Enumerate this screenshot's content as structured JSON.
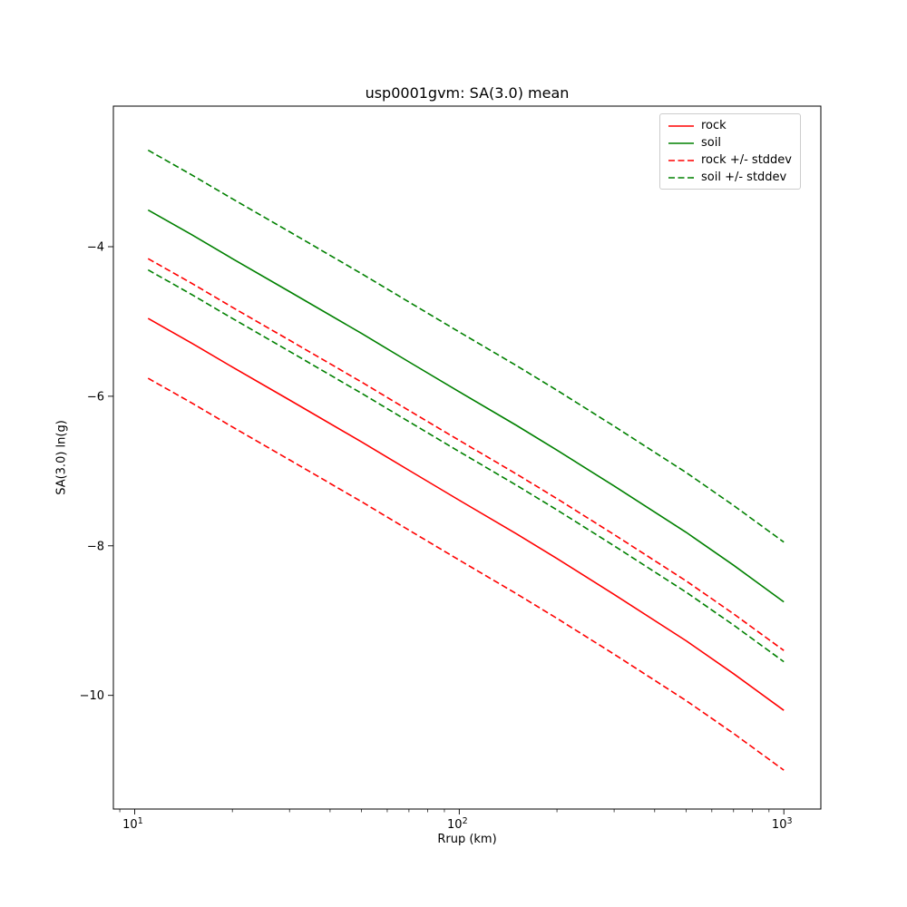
{
  "chart_data": {
    "type": "line",
    "title": "usp0001gvm: SA(3.0) mean",
    "xlabel": "Rrup (km)",
    "ylabel": "SA(3.0) ln(g)",
    "xscale": "log",
    "yscale": "linear",
    "xlim": [
      8.6,
      1300
    ],
    "ylim": [
      -11.52,
      -2.12
    ],
    "yticks": [
      -4,
      -6,
      -8,
      -10
    ],
    "xticks": [
      {
        "value": 10,
        "base": "10",
        "exponent": "1"
      },
      {
        "value": 100,
        "base": "10",
        "exponent": "2"
      },
      {
        "value": 1000,
        "base": "10",
        "exponent": "3"
      }
    ],
    "x_minor_ticks": [
      9,
      20,
      30,
      40,
      50,
      60,
      70,
      80,
      90,
      200,
      300,
      400,
      500,
      600,
      700,
      800,
      900
    ],
    "x": [
      11,
      15,
      20,
      30,
      50,
      70,
      100,
      150,
      200,
      300,
      500,
      700,
      1000
    ],
    "series": [
      {
        "name": "rock",
        "color": "#ff0000",
        "style": "solid",
        "values": [
          -4.96,
          -5.29,
          -5.61,
          -6.05,
          -6.61,
          -6.99,
          -7.39,
          -7.84,
          -8.17,
          -8.65,
          -9.27,
          -9.71,
          -10.2
        ]
      },
      {
        "name": "soil",
        "color": "#008000",
        "style": "solid",
        "values": [
          -3.51,
          -3.84,
          -4.16,
          -4.6,
          -5.16,
          -5.54,
          -5.94,
          -6.39,
          -6.72,
          -7.2,
          -7.82,
          -8.26,
          -8.75
        ]
      },
      {
        "name": "rock +/- stddev",
        "color": "#ff0000",
        "style": "dashed",
        "upper": [
          -4.16,
          -4.49,
          -4.81,
          -5.25,
          -5.81,
          -6.19,
          -6.59,
          -7.04,
          -7.37,
          -7.85,
          -8.47,
          -8.91,
          -9.4
        ],
        "lower": [
          -5.76,
          -6.09,
          -6.41,
          -6.85,
          -7.41,
          -7.79,
          -8.19,
          -8.64,
          -8.97,
          -9.45,
          -10.07,
          -10.51,
          -11.0
        ]
      },
      {
        "name": "soil +/- stddev",
        "color": "#008000",
        "style": "dashed",
        "upper": [
          -2.71,
          -3.04,
          -3.36,
          -3.8,
          -4.36,
          -4.74,
          -5.14,
          -5.59,
          -5.92,
          -6.4,
          -7.02,
          -7.46,
          -7.95
        ],
        "lower": [
          -4.31,
          -4.64,
          -4.96,
          -5.4,
          -5.96,
          -6.34,
          -6.74,
          -7.19,
          -7.52,
          -8.0,
          -8.62,
          -9.06,
          -9.55
        ]
      }
    ],
    "legend": {
      "position": "upper right",
      "entries": [
        "rock",
        "soil",
        "rock +/- stddev",
        "soil +/- stddev"
      ]
    }
  }
}
